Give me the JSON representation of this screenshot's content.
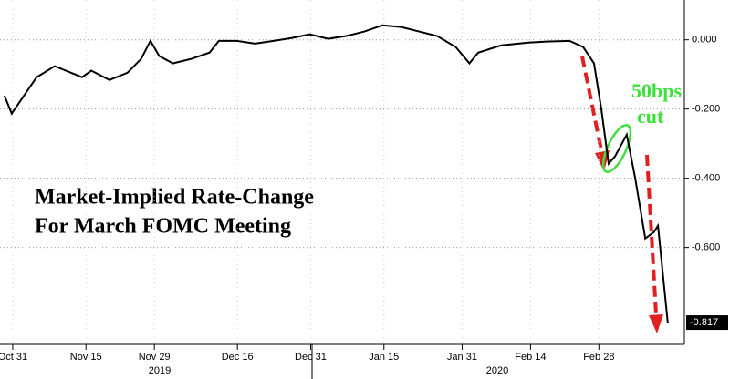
{
  "chart_data": {
    "type": "line",
    "annotations": [
      "Market-Implied Rate-Change",
      "For March FOMC Meeting",
      "50bps",
      "cut"
    ],
    "year_labels": [
      "2019",
      "2020"
    ],
    "series": [
      {
        "color": "#000000",
        "x": [
          -1.7,
          -0.2,
          4.9,
          8.6,
          14.2,
          16.1,
          19.8,
          23.5,
          26.3,
          28.2,
          30.0,
          32.8,
          36.6,
          40.3,
          42.2,
          45.9,
          49.6,
          53.4,
          57.1,
          60.8,
          64.6,
          68.3,
          72.0,
          75.7,
          79.5,
          83.2,
          86.9,
          90.7,
          93.5,
          95.3,
          100.0,
          105.6,
          109.3,
          114.0,
          116.8,
          119.0,
          120.5,
          122.0,
          123.3,
          125.7,
          127.4,
          129.5,
          131.3,
          132.1,
          134.1
        ],
        "values": [
          -0.161,
          -0.213,
          -0.108,
          -0.076,
          -0.108,
          -0.089,
          -0.116,
          -0.095,
          -0.055,
          -0.003,
          -0.047,
          -0.068,
          -0.055,
          -0.037,
          -0.003,
          -0.003,
          -0.011,
          -0.003,
          0.005,
          0.016,
          0.003,
          0.011,
          0.024,
          0.042,
          0.037,
          0.024,
          0.011,
          -0.021,
          -0.068,
          -0.037,
          -0.016,
          -0.008,
          -0.005,
          -0.003,
          -0.021,
          -0.068,
          -0.2,
          -0.358,
          -0.337,
          -0.274,
          -0.397,
          -0.574,
          -0.555,
          -0.537,
          -0.817
        ]
      }
    ],
    "xlim": [
      -2.6,
      137.5
    ],
    "xticks": [
      {
        "value": 0,
        "label": "Oct 31"
      },
      {
        "value": 15,
        "label": "Nov 15"
      },
      {
        "value": 29,
        "label": "Nov 29"
      },
      {
        "value": 46,
        "label": "Dec 16"
      },
      {
        "value": 61,
        "label": "Dec 31"
      },
      {
        "value": 76,
        "label": "Jan 15"
      },
      {
        "value": 92,
        "label": "Jan 31"
      },
      {
        "value": 106,
        "label": "Feb 14"
      },
      {
        "value": 120,
        "label": "Feb 28"
      }
    ],
    "ylim": [
      -0.88,
      0.115
    ],
    "yticks": [
      {
        "value": 0,
        "label": "0.000"
      },
      {
        "value": -0.2,
        "label": "-0.200"
      },
      {
        "value": -0.4,
        "label": "-0.400"
      },
      {
        "value": -0.6,
        "label": "-0.600"
      }
    ],
    "grid": true
  }
}
